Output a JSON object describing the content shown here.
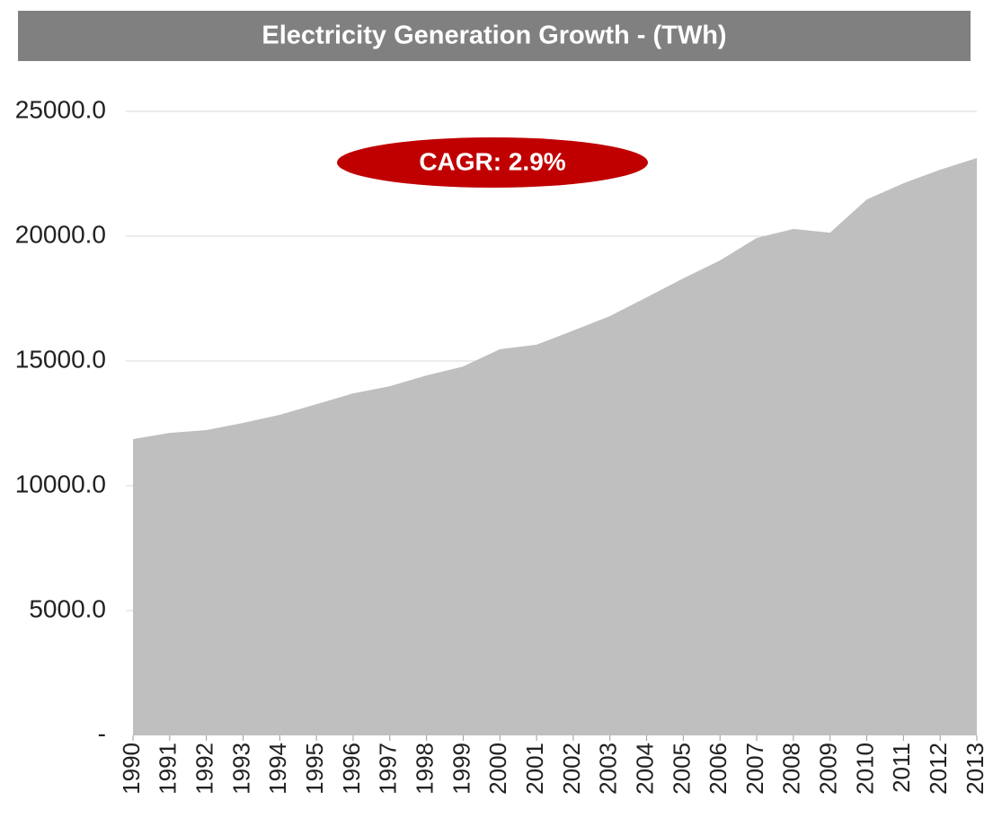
{
  "chart_data": {
    "type": "area",
    "title": "Electricity Generation Growth - (TWh)",
    "annotation": "CAGR: 2.9%",
    "categories": [
      "1990",
      "1991",
      "1992",
      "1993",
      "1994",
      "1995",
      "1996",
      "1997",
      "1998",
      "1999",
      "2000",
      "2001",
      "2002",
      "2003",
      "2004",
      "2005",
      "2006",
      "2007",
      "2008",
      "2009",
      "2010",
      "2011",
      "2012",
      "2013"
    ],
    "values": [
      11870,
      12120,
      12230,
      12520,
      12840,
      13270,
      13700,
      13990,
      14420,
      14780,
      15470,
      15650,
      16220,
      16800,
      17550,
      18310,
      19030,
      19930,
      20290,
      20140,
      21470,
      22120,
      22660,
      23130
    ],
    "color": "#bfbfbf",
    "ylim": [
      0,
      25000
    ],
    "yticks": [
      {
        "value": 0,
        "label": "-"
      },
      {
        "value": 5000,
        "label": "5000.0"
      },
      {
        "value": 10000,
        "label": "10000.0"
      },
      {
        "value": 15000,
        "label": "15000.0"
      },
      {
        "value": 20000,
        "label": "20000.0"
      },
      {
        "value": 25000,
        "label": "25000.0"
      }
    ],
    "grid": true
  }
}
